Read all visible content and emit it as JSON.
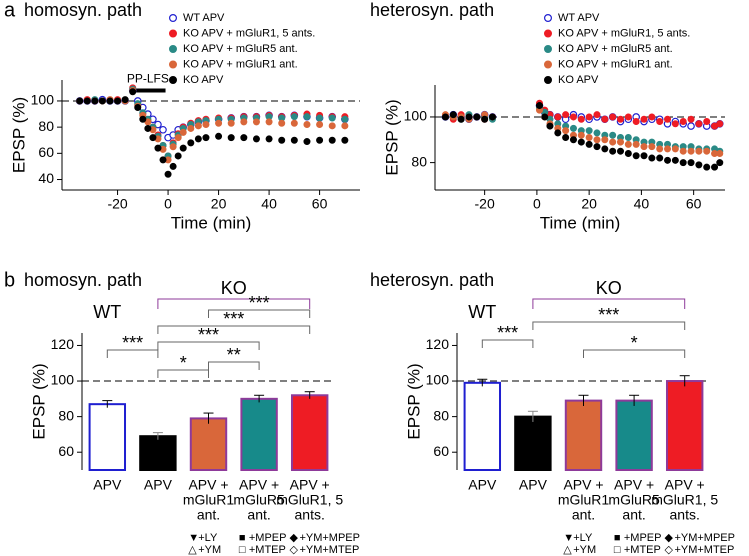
{
  "panel_labels": [
    "a",
    "b"
  ],
  "chart_data": [
    {
      "type": "scatter",
      "title": "homosyn. path",
      "xlabel": "Time (min)",
      "ylabel": "EPSP (%)",
      "xlim": [
        -42,
        76
      ],
      "ylim": [
        32,
        116
      ],
      "xticks": [
        -20,
        0,
        20,
        40,
        60
      ],
      "yticks": [
        40,
        60,
        80,
        100
      ],
      "reference_line": 100,
      "annotation": {
        "label": "PP-LFS",
        "start": -15,
        "end": -1,
        "y": 108
      },
      "x": [
        -35,
        -32,
        -29,
        -26,
        -23,
        -20,
        -17,
        -14,
        -12,
        -10,
        -8,
        -6,
        -4,
        -2,
        0,
        2,
        4,
        6,
        9,
        12,
        15,
        20,
        25,
        30,
        35,
        40,
        45,
        50,
        55,
        60,
        65,
        70
      ],
      "series": [
        {
          "name": "WT APV",
          "color": "#1f1fd0",
          "marker": "open",
          "values": [
            100,
            100,
            100,
            101,
            100,
            100,
            100,
            108,
            100,
            95,
            90,
            86,
            82,
            78,
            72,
            74,
            78,
            80,
            82,
            84,
            85,
            86,
            87,
            88,
            88,
            89,
            88,
            89,
            88,
            87,
            88,
            86
          ]
        },
        {
          "name": "KO APV + mGluR1, 5 ants.",
          "color": "#ee1c24",
          "marker": "filled",
          "values": [
            100,
            101,
            100,
            100,
            100,
            101,
            100,
            110,
            97,
            90,
            85,
            80,
            74,
            66,
            58,
            68,
            75,
            80,
            83,
            85,
            86,
            87,
            87,
            88,
            88,
            89,
            88,
            89,
            90,
            89,
            88,
            88
          ]
        },
        {
          "name": "KO APV + mGluR5 ant.",
          "color": "#2a8a86",
          "marker": "filled",
          "values": [
            100,
            100,
            101,
            100,
            100,
            100,
            100,
            109,
            98,
            91,
            86,
            80,
            73,
            66,
            58,
            67,
            74,
            79,
            82,
            84,
            85,
            86,
            86,
            87,
            87,
            88,
            87,
            88,
            88,
            87,
            87,
            86
          ]
        },
        {
          "name": "KO APV + mGluR1 ant.",
          "color": "#d9673a",
          "marker": "filled",
          "values": [
            100,
            100,
            100,
            100,
            101,
            100,
            100,
            108,
            96,
            89,
            84,
            78,
            71,
            63,
            55,
            65,
            72,
            76,
            79,
            81,
            82,
            83,
            83,
            84,
            84,
            84,
            83,
            83,
            82,
            82,
            81,
            81
          ]
        },
        {
          "name": "KO APV",
          "color": "#000000",
          "marker": "filled",
          "values": [
            100,
            100,
            100,
            100,
            100,
            100,
            101,
            107,
            95,
            86,
            79,
            72,
            64,
            55,
            44,
            50,
            58,
            64,
            68,
            71,
            72,
            73,
            72,
            72,
            71,
            71,
            70,
            70,
            69,
            70,
            70,
            70
          ]
        }
      ]
    },
    {
      "type": "scatter",
      "title": "heterosyn. path",
      "xlabel": "Time (min)",
      "ylabel": "EPSP (%)",
      "xlim": [
        -39,
        72
      ],
      "ylim": [
        68,
        114
      ],
      "xticks": [
        -20,
        0,
        20,
        40,
        60
      ],
      "yticks": [
        80,
        100
      ],
      "reference_line": 100,
      "x": [
        -35,
        -32,
        -29,
        -26,
        -23,
        -20,
        -17,
        1,
        3,
        5,
        8,
        11,
        14,
        17,
        20,
        23,
        26,
        29,
        32,
        35,
        38,
        41,
        44,
        47,
        50,
        53,
        56,
        59,
        62,
        65,
        68,
        70
      ],
      "series": [
        {
          "name": "WT APV",
          "color": "#1f1fd0",
          "marker": "open",
          "values": [
            100,
            101,
            100,
            99,
            100,
            101,
            100,
            105,
            102,
            101,
            100,
            99,
            101,
            100,
            99,
            100,
            99,
            100,
            98,
            99,
            100,
            98,
            99,
            99,
            97,
            98,
            97,
            96,
            97,
            96,
            96,
            97
          ]
        },
        {
          "name": "KO APV + mGluR1, 5 ants.",
          "color": "#ee1c24",
          "marker": "filled",
          "values": [
            100,
            99,
            101,
            100,
            100,
            99,
            100,
            106,
            103,
            101,
            100,
            101,
            100,
            99,
            100,
            101,
            99,
            100,
            99,
            100,
            98,
            99,
            100,
            98,
            99,
            97,
            98,
            99,
            97,
            98,
            96,
            97
          ]
        },
        {
          "name": "KO APV + mGluR5 ant.",
          "color": "#2a8a86",
          "marker": "filled",
          "values": [
            100,
            100,
            99,
            101,
            100,
            100,
            99,
            104,
            102,
            99,
            97,
            96,
            95,
            94,
            94,
            93,
            92,
            92,
            91,
            91,
            90,
            89,
            89,
            88,
            88,
            87,
            87,
            87,
            86,
            86,
            86,
            85
          ]
        },
        {
          "name": "KO APV + mGluR1 ant.",
          "color": "#d9673a",
          "marker": "filled",
          "values": [
            101,
            100,
            100,
            99,
            100,
            101,
            100,
            103,
            100,
            97,
            95,
            94,
            92,
            92,
            91,
            90,
            90,
            89,
            89,
            88,
            88,
            87,
            87,
            86,
            86,
            86,
            85,
            85,
            85,
            85,
            84,
            84
          ]
        },
        {
          "name": "KO APV",
          "color": "#000000",
          "marker": "filled",
          "values": [
            100,
            101,
            99,
            100,
            100,
            99,
            100,
            105,
            100,
            96,
            93,
            91,
            90,
            89,
            88,
            87,
            86,
            85,
            85,
            84,
            83,
            83,
            82,
            82,
            81,
            81,
            80,
            80,
            79,
            78,
            78,
            80
          ]
        }
      ]
    },
    {
      "type": "bar",
      "title": "homosyn. path",
      "ylabel": "EPSP (%)",
      "ylim": [
        50,
        127
      ],
      "yticks": [
        60,
        80,
        100,
        120
      ],
      "reference_line": 100,
      "categories": [
        [
          "APV"
        ],
        [
          "APV"
        ],
        [
          "APV +",
          "mGluR1",
          "ant."
        ],
        [
          "APV +",
          "mGluR5",
          "ant."
        ],
        [
          "APV +",
          "mGluR1, 5",
          "ants."
        ]
      ],
      "values": [
        87,
        69,
        79,
        90,
        92
      ],
      "errors": [
        2,
        2,
        3,
        2,
        2
      ],
      "colors": [
        "#ffffff",
        "#000000",
        "#d9673a",
        "#178a8a",
        "#ee1c24"
      ],
      "edge_colors": [
        "#1f1fd0",
        "#000000",
        "#8e3a9a",
        "#8e3a9a",
        "#8e3a9a"
      ],
      "label_colors": [
        "#1f1fd0",
        "#000000",
        "#d9673a",
        "#178a8a",
        "#ee1c24"
      ],
      "groups": [
        {
          "label": "WT",
          "from": 0,
          "to": 0,
          "color": "#1f1fd0"
        },
        {
          "label": "KO",
          "from": 1,
          "to": 4,
          "color": "#8e3a9a"
        }
      ],
      "brackets": [
        {
          "from": 0,
          "to": 1,
          "label": "***"
        },
        {
          "from": 1,
          "to": 2,
          "label": "*"
        },
        {
          "from": 2,
          "to": 3,
          "label": "**"
        },
        {
          "from": 1,
          "to": 3,
          "label": "***"
        },
        {
          "from": 1,
          "to": 4,
          "label": "***"
        },
        {
          "from": 2,
          "to": 4,
          "label": "***"
        }
      ],
      "symbol_legend": [
        {
          "at": 2,
          "items": [
            {
              "symbol": "▼",
              "label": "+LY"
            },
            {
              "symbol": "△",
              "label": "+YM"
            }
          ]
        },
        {
          "at": 3,
          "items": [
            {
              "symbol": "■",
              "label": "+MPEP"
            },
            {
              "symbol": "□",
              "label": "+MTEP"
            }
          ]
        },
        {
          "at": 4,
          "items": [
            {
              "symbol": "◆",
              "label": "+YM+MPEP"
            },
            {
              "symbol": "◇",
              "label": "+YM+MTEP"
            }
          ]
        }
      ]
    },
    {
      "type": "bar",
      "title": "heterosyn. path",
      "ylabel": "EPSP (%)",
      "ylim": [
        50,
        127
      ],
      "yticks": [
        60,
        80,
        100,
        120
      ],
      "reference_line": 100,
      "categories": [
        [
          "APV"
        ],
        [
          "APV"
        ],
        [
          "APV +",
          "mGluR1",
          "ant."
        ],
        [
          "APV +",
          "mGluR5",
          "ant."
        ],
        [
          "APV +",
          "mGluR1, 5",
          "ants."
        ]
      ],
      "values": [
        99,
        80,
        89,
        89,
        100
      ],
      "errors": [
        2,
        3,
        3,
        3,
        3
      ],
      "colors": [
        "#ffffff",
        "#000000",
        "#d9673a",
        "#178a8a",
        "#ee1c24"
      ],
      "edge_colors": [
        "#1f1fd0",
        "#000000",
        "#8e3a9a",
        "#8e3a9a",
        "#8e3a9a"
      ],
      "label_colors": [
        "#1f1fd0",
        "#000000",
        "#d9673a",
        "#178a8a",
        "#ee1c24"
      ],
      "groups": [
        {
          "label": "WT",
          "from": 0,
          "to": 0,
          "color": "#1f1fd0"
        },
        {
          "label": "KO",
          "from": 1,
          "to": 4,
          "color": "#8e3a9a"
        }
      ],
      "brackets": [
        {
          "from": 0,
          "to": 1,
          "label": "***"
        },
        {
          "from": 1,
          "to": 4,
          "label": "***"
        },
        {
          "from": 2,
          "to": 4,
          "label": "*"
        }
      ],
      "symbol_legend": [
        {
          "at": 2,
          "items": [
            {
              "symbol": "▼",
              "label": "+LY"
            },
            {
              "symbol": "△",
              "label": "+YM"
            }
          ]
        },
        {
          "at": 3,
          "items": [
            {
              "symbol": "■",
              "label": "+MPEP"
            },
            {
              "symbol": "□",
              "label": "+MTEP"
            }
          ]
        },
        {
          "at": 4,
          "items": [
            {
              "symbol": "◆",
              "label": "+YM+MPEP"
            },
            {
              "symbol": "◇",
              "label": "+YM+MTEP"
            }
          ]
        }
      ]
    }
  ]
}
